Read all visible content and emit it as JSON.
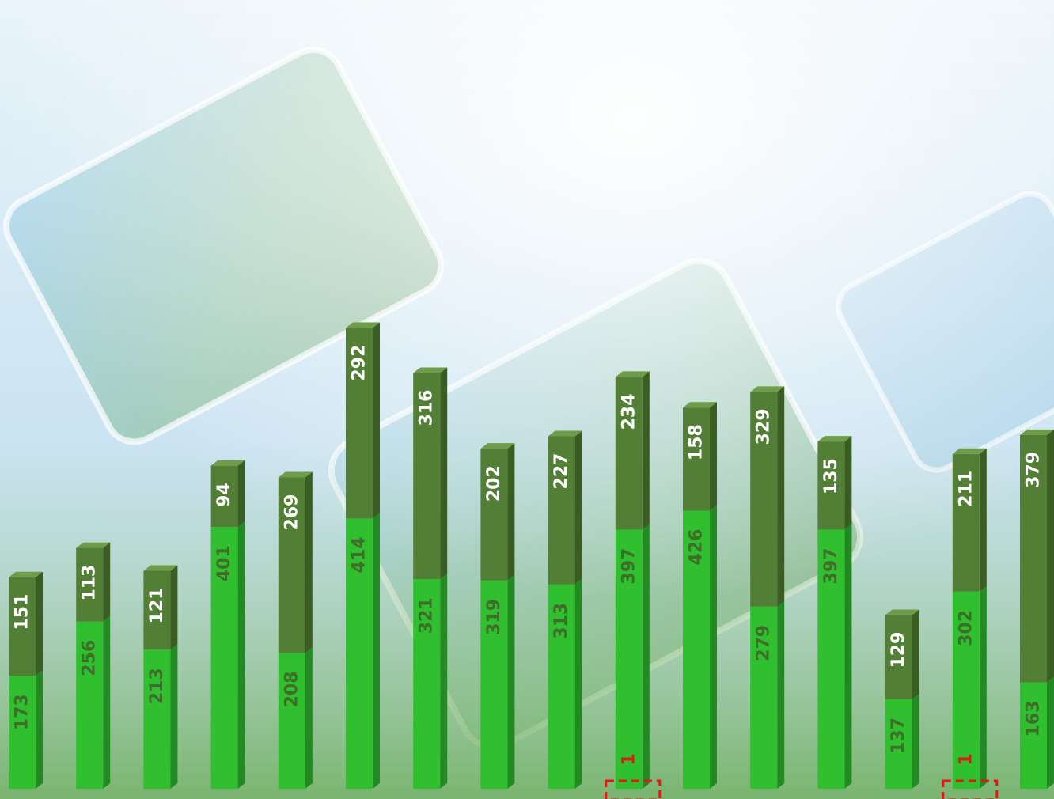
{
  "colors": {
    "bottom_front": "#2fbf2f",
    "bottom_side": "#238a23",
    "bottom_top": "#5bd65b",
    "top_front": "#527f35",
    "top_side": "#3a5d24",
    "top_top": "#6e9c4b",
    "label_on_dark": "#ffffff",
    "label_on_light": "#3f6e2a",
    "highlight": "#e01818",
    "sky_light": "#f4f9fc",
    "sky_blue": "#8cc7e6",
    "ground_green": "#6fae5a"
  },
  "chart_data": {
    "type": "bar",
    "stacked": true,
    "categories": [
      "",
      "",
      "",
      "",
      "",
      "",
      "",
      "",
      "",
      "",
      "",
      "",
      "",
      "",
      "",
      ""
    ],
    "series": [
      {
        "name": "",
        "values": [
          173,
          256,
          213,
          401,
          208,
          414,
          321,
          319,
          313,
          397,
          426,
          279,
          397,
          137,
          302,
          163
        ]
      },
      {
        "name": "",
        "values": [
          151,
          113,
          121,
          94,
          269,
          292,
          316,
          202,
          227,
          234,
          158,
          329,
          135,
          129,
          211,
          379
        ]
      }
    ],
    "annotations": [
      {
        "index": 9,
        "text": "1"
      },
      {
        "index": 14,
        "text": "1"
      }
    ],
    "ylim": [
      0,
      720
    ],
    "title": "",
    "xlabel": "",
    "ylabel": "",
    "grid": false,
    "legend": "none",
    "value_labels": "vertical, inside bars"
  }
}
